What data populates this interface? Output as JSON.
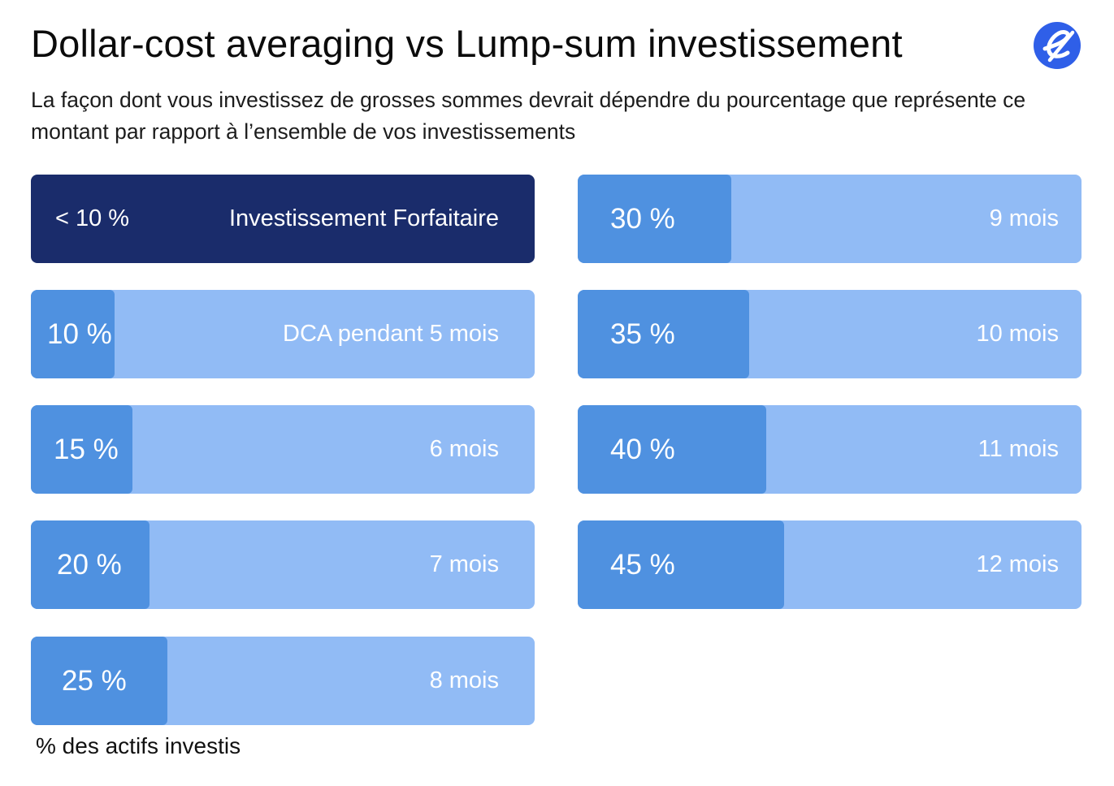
{
  "title": "Dollar-cost averaging vs Lump-sum investissement",
  "subtitle": "La façon dont vous investissez de grosses sommes devrait dépendre du pourcentage que représente ce montant par rapport à l’ensemble de vos investissements",
  "footnote": "% des actifs investis",
  "colors": {
    "dark": "#1a2c6b",
    "fill": "#4f91e0",
    "track": "#91bbf5",
    "logo": "#2f5fe8"
  },
  "chart_data": {
    "type": "bar",
    "rows": [
      {
        "pct_label": "< 10 %",
        "label": "Investissement Forfaitaire",
        "value": null,
        "highlight": true
      },
      {
        "pct_label": "10 %",
        "label": "DCA pendant 5 mois",
        "value": 10
      },
      {
        "pct_label": "15 %",
        "label": "6 mois",
        "value": 15
      },
      {
        "pct_label": "20 %",
        "label": "7 mois",
        "value": 20
      },
      {
        "pct_label": "25 %",
        "label": "8 mois",
        "value": 25
      },
      {
        "pct_label": "30 %",
        "label": "9 mois",
        "value": 30
      },
      {
        "pct_label": "35 %",
        "label": "10 mois",
        "value": 35
      },
      {
        "pct_label": "40 %",
        "label": "11 mois",
        "value": 40
      },
      {
        "pct_label": "45 %",
        "label": "12 mois",
        "value": 45
      }
    ]
  }
}
